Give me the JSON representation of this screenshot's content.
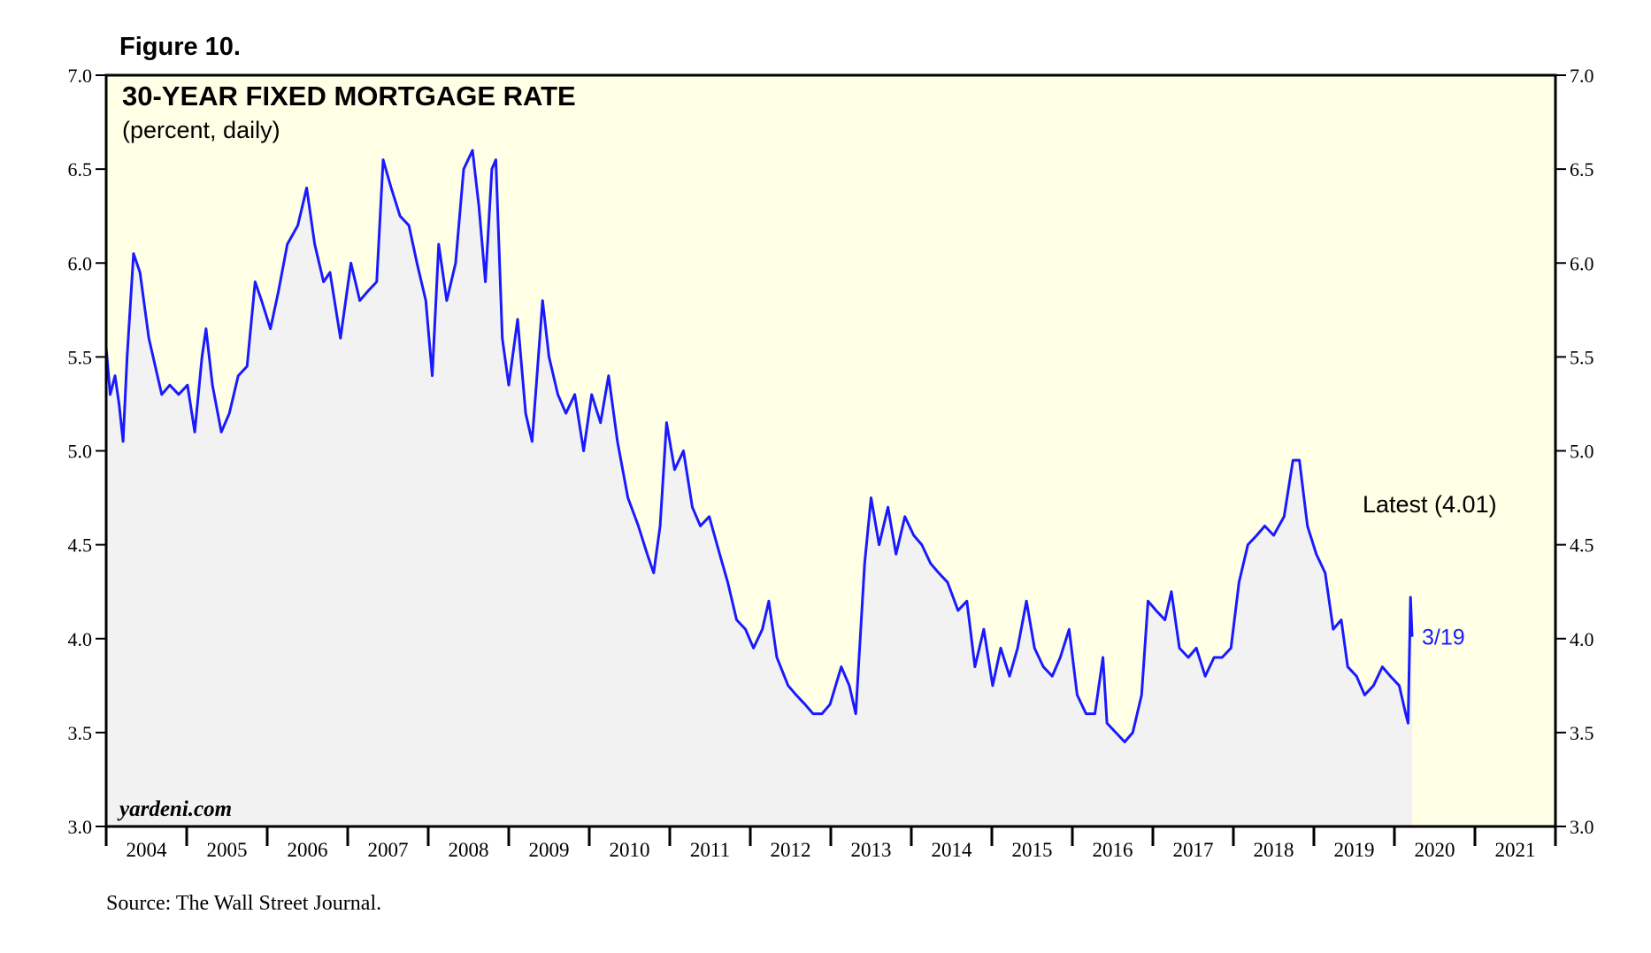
{
  "chart_data": {
    "type": "line",
    "figure_label": "Figure 10.",
    "title": "30-YEAR FIXED MORTGAGE RATE",
    "subtitle": "(percent, daily)",
    "watermark": "yardeni.com",
    "annotation": "Latest (4.01)",
    "latest_label": "3/19",
    "source": "Source: The Wall Street Journal.",
    "color": "#1a1aff",
    "area_color": "#f2f2f2",
    "background": "#ffffe6",
    "xlim": [
      2004,
      2022
    ],
    "ylim": [
      3.0,
      7.0
    ],
    "yticks": [
      {
        "value": 3.0,
        "label": "3.0"
      },
      3.5,
      {
        "value": 4.0,
        "label": "4.0"
      },
      4.5,
      {
        "value": 5.0,
        "label": "5.0"
      },
      5.5,
      {
        "value": 6.0,
        "label": "6.0"
      },
      6.5,
      {
        "value": 7.0,
        "label": "7.0"
      }
    ],
    "xticks": [
      2004,
      2005,
      2006,
      2007,
      2008,
      2009,
      2010,
      2011,
      2012,
      2013,
      2014,
      2015,
      2016,
      2017,
      2018,
      2019,
      2020,
      2021,
      2022
    ],
    "xlabels": [
      {
        "value": 2004.5,
        "label": "2004"
      },
      {
        "value": 2005.5,
        "label": "2005"
      },
      {
        "value": 2006.5,
        "label": "2006"
      },
      {
        "value": 2007.5,
        "label": "2007"
      },
      {
        "value": 2008.5,
        "label": "2008"
      },
      {
        "value": 2009.5,
        "label": "2009"
      },
      {
        "value": 2010.5,
        "label": "2010"
      },
      {
        "value": 2011.5,
        "label": "2011"
      },
      {
        "value": 2012.5,
        "label": "2012"
      },
      {
        "value": 2013.5,
        "label": "2013"
      },
      {
        "value": 2014.5,
        "label": "2014"
      },
      {
        "value": 2015.5,
        "label": "2015"
      },
      {
        "value": 2016.5,
        "label": "2016"
      },
      {
        "value": 2017.5,
        "label": "2017"
      },
      {
        "value": 2018.5,
        "label": "2018"
      },
      {
        "value": 2019.5,
        "label": "2019"
      },
      {
        "value": 2020.5,
        "label": "2020"
      },
      {
        "value": 2021.5,
        "label": "2021"
      }
    ],
    "x": [
      2004.0,
      2004.05,
      2004.11,
      2004.16,
      2004.21,
      2004.26,
      2004.34,
      2004.42,
      2004.53,
      2004.61,
      2004.69,
      2004.79,
      2004.9,
      2005.01,
      2005.1,
      2005.19,
      2005.24,
      2005.32,
      2005.43,
      2005.53,
      2005.64,
      2005.75,
      2005.85,
      2005.93,
      2006.04,
      2006.14,
      2006.25,
      2006.38,
      2006.49,
      2006.59,
      2006.7,
      2006.78,
      2006.91,
      2007.04,
      2007.15,
      2007.25,
      2007.36,
      2007.44,
      2007.54,
      2007.65,
      2007.76,
      2007.86,
      2007.97,
      2008.05,
      2008.13,
      2008.23,
      2008.34,
      2008.44,
      2008.55,
      2008.63,
      2008.71,
      2008.79,
      2008.84,
      2008.92,
      2009.0,
      2009.11,
      2009.21,
      2009.29,
      2009.42,
      2009.5,
      2009.61,
      2009.71,
      2009.82,
      2009.93,
      2010.03,
      2010.14,
      2010.24,
      2010.35,
      2010.48,
      2010.61,
      2010.72,
      2010.8,
      2010.88,
      2010.96,
      2011.06,
      2011.17,
      2011.28,
      2011.38,
      2011.49,
      2011.62,
      2011.72,
      2011.83,
      2011.94,
      2012.04,
      2012.15,
      2012.23,
      2012.33,
      2012.47,
      2012.57,
      2012.68,
      2012.78,
      2012.89,
      2012.99,
      2013.13,
      2013.23,
      2013.31,
      2013.42,
      2013.5,
      2013.6,
      2013.71,
      2013.81,
      2013.92,
      2014.03,
      2014.13,
      2014.24,
      2014.34,
      2014.45,
      2014.58,
      2014.69,
      2014.79,
      2014.9,
      2015.01,
      2015.11,
      2015.22,
      2015.32,
      2015.43,
      2015.53,
      2015.64,
      2015.75,
      2015.85,
      2015.96,
      2016.06,
      2016.17,
      2016.28,
      2016.38,
      2016.43,
      2016.54,
      2016.65,
      2016.75,
      2016.86,
      2016.94,
      2017.04,
      2017.15,
      2017.23,
      2017.33,
      2017.44,
      2017.54,
      2017.65,
      2017.76,
      2017.86,
      2017.97,
      2018.07,
      2018.18,
      2018.29,
      2018.39,
      2018.5,
      2018.63,
      2018.74,
      2018.82,
      2018.92,
      2019.03,
      2019.14,
      2019.24,
      2019.34,
      2019.42,
      2019.53,
      2019.63,
      2019.74,
      2019.85,
      2019.95,
      2020.06,
      2020.14,
      2020.17,
      2020.2,
      2020.22
    ],
    "values": [
      5.55,
      5.3,
      5.4,
      5.25,
      5.05,
      5.5,
      6.05,
      5.95,
      5.6,
      5.45,
      5.3,
      5.35,
      5.3,
      5.35,
      5.1,
      5.5,
      5.65,
      5.35,
      5.1,
      5.2,
      5.4,
      5.45,
      5.9,
      5.8,
      5.65,
      5.85,
      6.1,
      6.2,
      6.4,
      6.1,
      5.9,
      5.95,
      5.6,
      6.0,
      5.8,
      5.85,
      5.9,
      6.55,
      6.4,
      6.25,
      6.2,
      6.0,
      5.8,
      5.4,
      6.1,
      5.8,
      6.0,
      6.5,
      6.6,
      6.3,
      5.9,
      6.5,
      6.55,
      5.6,
      5.35,
      5.7,
      5.2,
      5.05,
      5.8,
      5.5,
      5.3,
      5.2,
      5.3,
      5.0,
      5.3,
      5.15,
      5.4,
      5.05,
      4.75,
      4.6,
      4.45,
      4.35,
      4.6,
      5.15,
      4.9,
      5.0,
      4.7,
      4.6,
      4.65,
      4.45,
      4.3,
      4.1,
      4.05,
      3.95,
      4.05,
      4.2,
      3.9,
      3.75,
      3.7,
      3.65,
      3.6,
      3.6,
      3.65,
      3.85,
      3.75,
      3.6,
      4.4,
      4.75,
      4.5,
      4.7,
      4.45,
      4.65,
      4.55,
      4.5,
      4.4,
      4.35,
      4.3,
      4.15,
      4.2,
      3.85,
      4.05,
      3.75,
      3.95,
      3.8,
      3.95,
      4.2,
      3.95,
      3.85,
      3.8,
      3.9,
      4.05,
      3.7,
      3.6,
      3.6,
      3.9,
      3.55,
      3.5,
      3.45,
      3.5,
      3.7,
      4.2,
      4.15,
      4.1,
      4.25,
      3.95,
      3.9,
      3.95,
      3.8,
      3.9,
      3.9,
      3.95,
      4.3,
      4.5,
      4.55,
      4.6,
      4.55,
      4.65,
      4.95,
      4.95,
      4.6,
      4.45,
      4.35,
      4.05,
      4.1,
      3.85,
      3.8,
      3.7,
      3.75,
      3.85,
      3.8,
      3.75,
      3.6,
      3.55,
      4.22,
      4.01
    ]
  }
}
